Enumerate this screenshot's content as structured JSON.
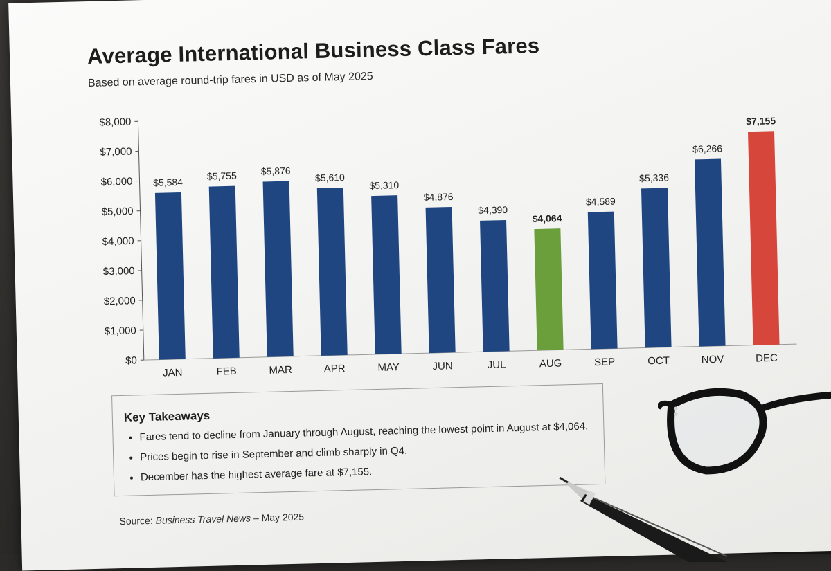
{
  "header": {
    "title": "Average International Business Class Fares",
    "subtitle": "Based on average round-trip fares in USD as of May 2025"
  },
  "chart_data": {
    "type": "bar",
    "title": "Average International Business Class Fares",
    "subtitle": "Based on average round-trip fares in USD as of May 2025",
    "categories": [
      "JAN",
      "FEB",
      "MAR",
      "APR",
      "MAY",
      "JUN",
      "JUL",
      "AUG",
      "SEP",
      "OCT",
      "NOV",
      "DEC"
    ],
    "values": [
      5584,
      5755,
      5876,
      5610,
      5310,
      4876,
      4390,
      4064,
      4589,
      5336,
      6266,
      7155
    ],
    "value_labels": [
      "$5,584",
      "$5,755",
      "$5,876",
      "$5,610",
      "$5,310",
      "$4,876",
      "$4,390",
      "$4,064",
      "$4,589",
      "$5,336",
      "$6,266",
      "$7,155"
    ],
    "ylim": [
      0,
      8000
    ],
    "y_ticks": [
      0,
      1000,
      2000,
      3000,
      4000,
      5000,
      6000,
      7000,
      8000
    ],
    "y_tick_labels": [
      "$0",
      "$1,000",
      "$2,000",
      "$3,000",
      "$4,000",
      "$5,000",
      "$6,000",
      "$7,000",
      "$8,000"
    ],
    "grid": false,
    "colors": {
      "default": "#1f4680",
      "lowest": "#6a9f3c",
      "highest": "#d7463a",
      "lowest_label": "#4e8a2a",
      "highest_label": "#b83a30"
    },
    "highlight": {
      "lowest": "AUG",
      "highest": "DEC"
    }
  },
  "takeaways": {
    "heading": "Key Takeaways",
    "items": [
      "Fares tend to decline from January through August, reaching the lowest  point in August at $4,064.",
      "Prices begin to rise in September and climb sharply in Q4.",
      "December has the highest average fare at $7,155."
    ]
  },
  "source": {
    "prefix": "Source: ",
    "publication": "Business Travel News",
    "suffix": " – May 2025"
  },
  "props": {
    "glasses_icon": "reading-glasses-icon",
    "pen_icon": "ballpoint-pen-icon"
  }
}
